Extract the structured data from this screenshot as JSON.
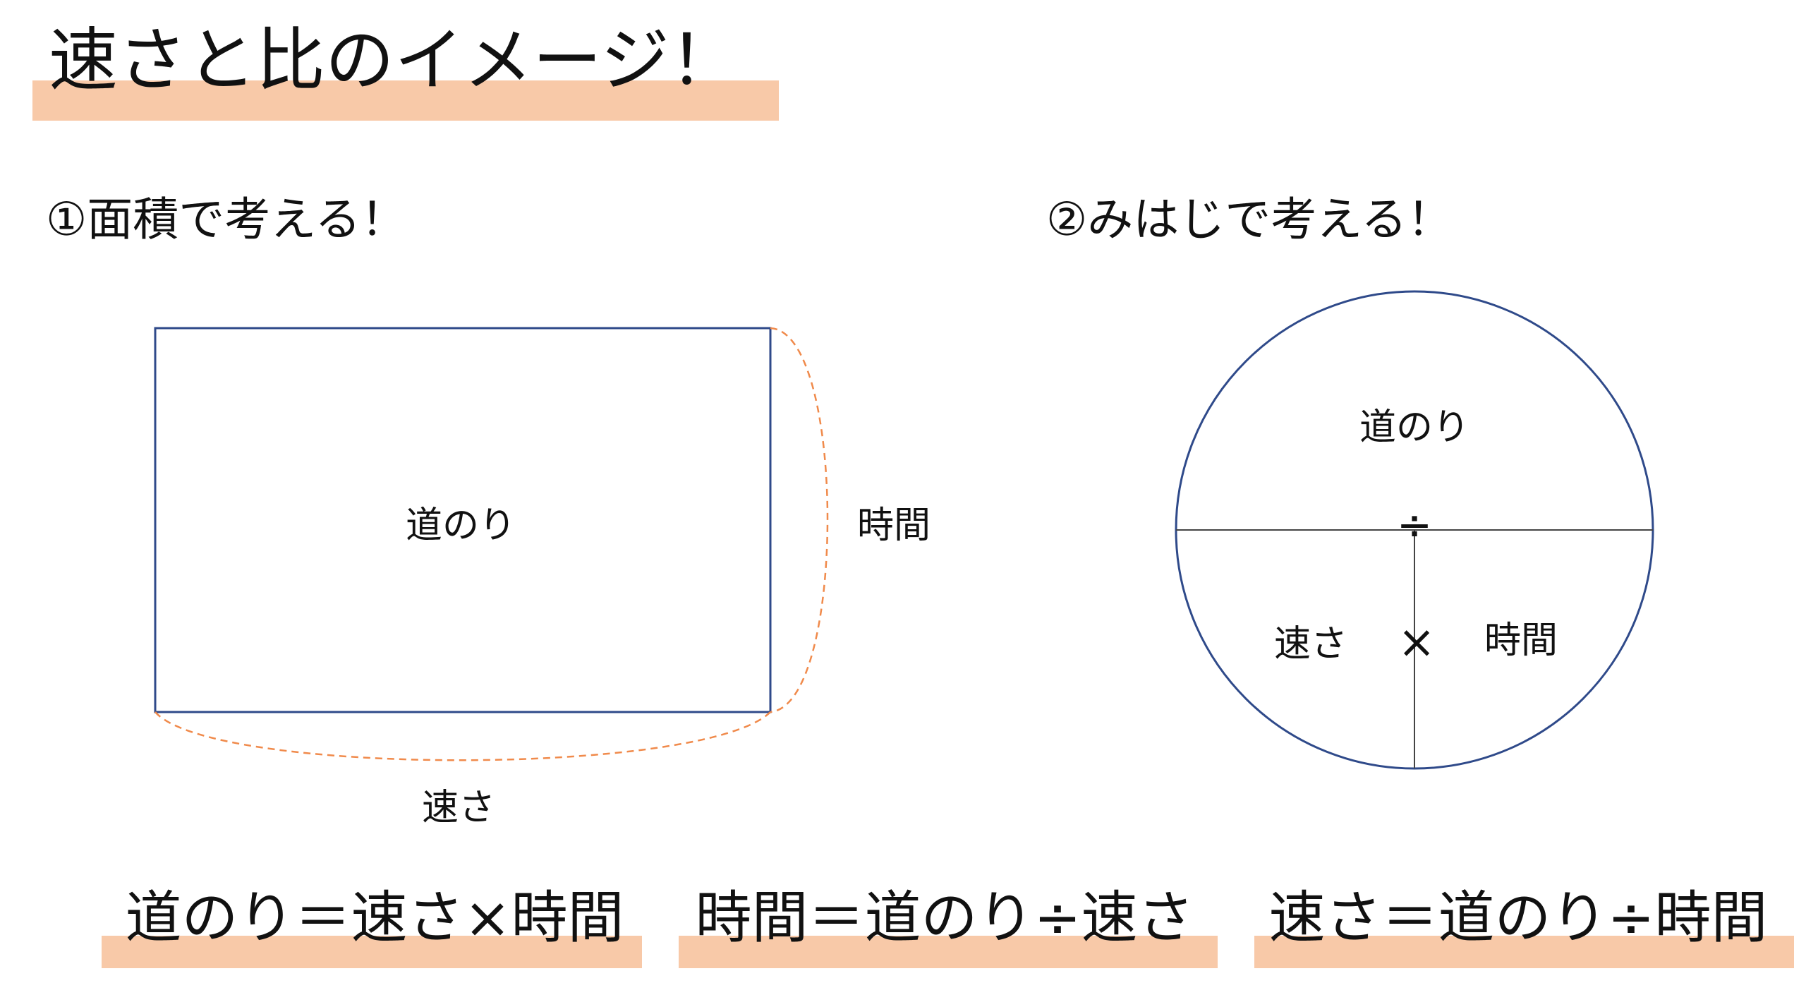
{
  "title": "速さと比のイメージ！",
  "area_method": {
    "heading": "①面積で考える！",
    "inside": "道のり",
    "side": "時間",
    "bottom": "速さ"
  },
  "circle_method": {
    "heading": "②みはじで考える！",
    "top": "道のり",
    "divide": "÷",
    "left": "速さ",
    "times": "×",
    "right": "時間"
  },
  "formulas": [
    "道のり＝速さ×時間",
    "時間＝道のり÷速さ",
    "速さ＝道のり÷時間"
  ]
}
